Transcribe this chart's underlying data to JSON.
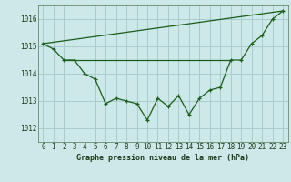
{
  "title": "Graphe pression niveau de la mer (hPa)",
  "bg_color": "#cce8e8",
  "grid_color": "#aacccc",
  "line_color": "#1a5c1a",
  "x_ticks": [
    0,
    1,
    2,
    3,
    4,
    5,
    6,
    7,
    8,
    9,
    10,
    11,
    12,
    13,
    14,
    15,
    16,
    17,
    18,
    19,
    20,
    21,
    22,
    23
  ],
  "ylim": [
    1011.5,
    1016.5
  ],
  "yticks": [
    1012,
    1013,
    1014,
    1015,
    1016
  ],
  "line1_x": [
    0,
    1,
    2,
    3,
    4,
    5,
    6,
    7,
    8,
    9,
    10,
    11,
    12,
    13,
    14,
    15,
    16,
    17,
    18,
    19,
    20,
    21,
    22,
    23
  ],
  "line1_y": [
    1015.1,
    1014.9,
    1014.5,
    1014.5,
    1014.0,
    1013.8,
    1012.9,
    1013.1,
    1013.0,
    1012.9,
    1012.3,
    1013.1,
    1012.8,
    1013.2,
    1012.5,
    1013.1,
    1013.4,
    1013.5,
    1014.5,
    1014.5,
    1015.1,
    1015.4,
    1016.0,
    1016.3
  ],
  "line2_x": [
    0,
    23
  ],
  "line2_y": [
    1015.1,
    1016.3
  ],
  "line3_x": [
    2,
    18
  ],
  "line3_y": [
    1014.5,
    1014.5
  ],
  "tick_fontsize": 5.5,
  "label_fontsize": 6.0
}
